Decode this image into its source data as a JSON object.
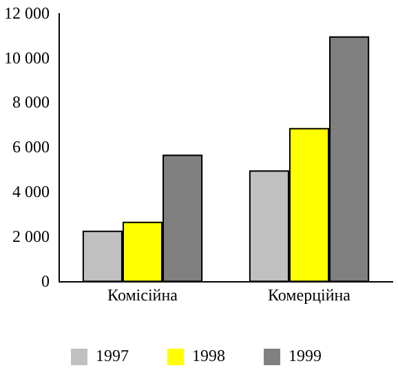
{
  "chart_data": {
    "type": "bar",
    "categories": [
      "Комісійна",
      "Комерційна"
    ],
    "series": [
      {
        "name": "1997",
        "color": "#c0c0c0",
        "values": [
          2300,
          5000
        ]
      },
      {
        "name": "1998",
        "color": "#ffff00",
        "values": [
          2700,
          6900
        ]
      },
      {
        "name": "1999",
        "color": "#808080",
        "values": [
          5700,
          11000
        ]
      }
    ],
    "ylim": [
      0,
      12000
    ],
    "yticks": [
      {
        "value": 0,
        "label": "0"
      },
      {
        "value": 2000,
        "label": "2 000"
      },
      {
        "value": 4000,
        "label": "4 000"
      },
      {
        "value": 6000,
        "label": "6 000"
      },
      {
        "value": 8000,
        "label": "8 000"
      },
      {
        "value": 10000,
        "label": "10 000"
      },
      {
        "value": 12000,
        "label": "12 000"
      }
    ],
    "grid": false,
    "legend": "bottom"
  }
}
